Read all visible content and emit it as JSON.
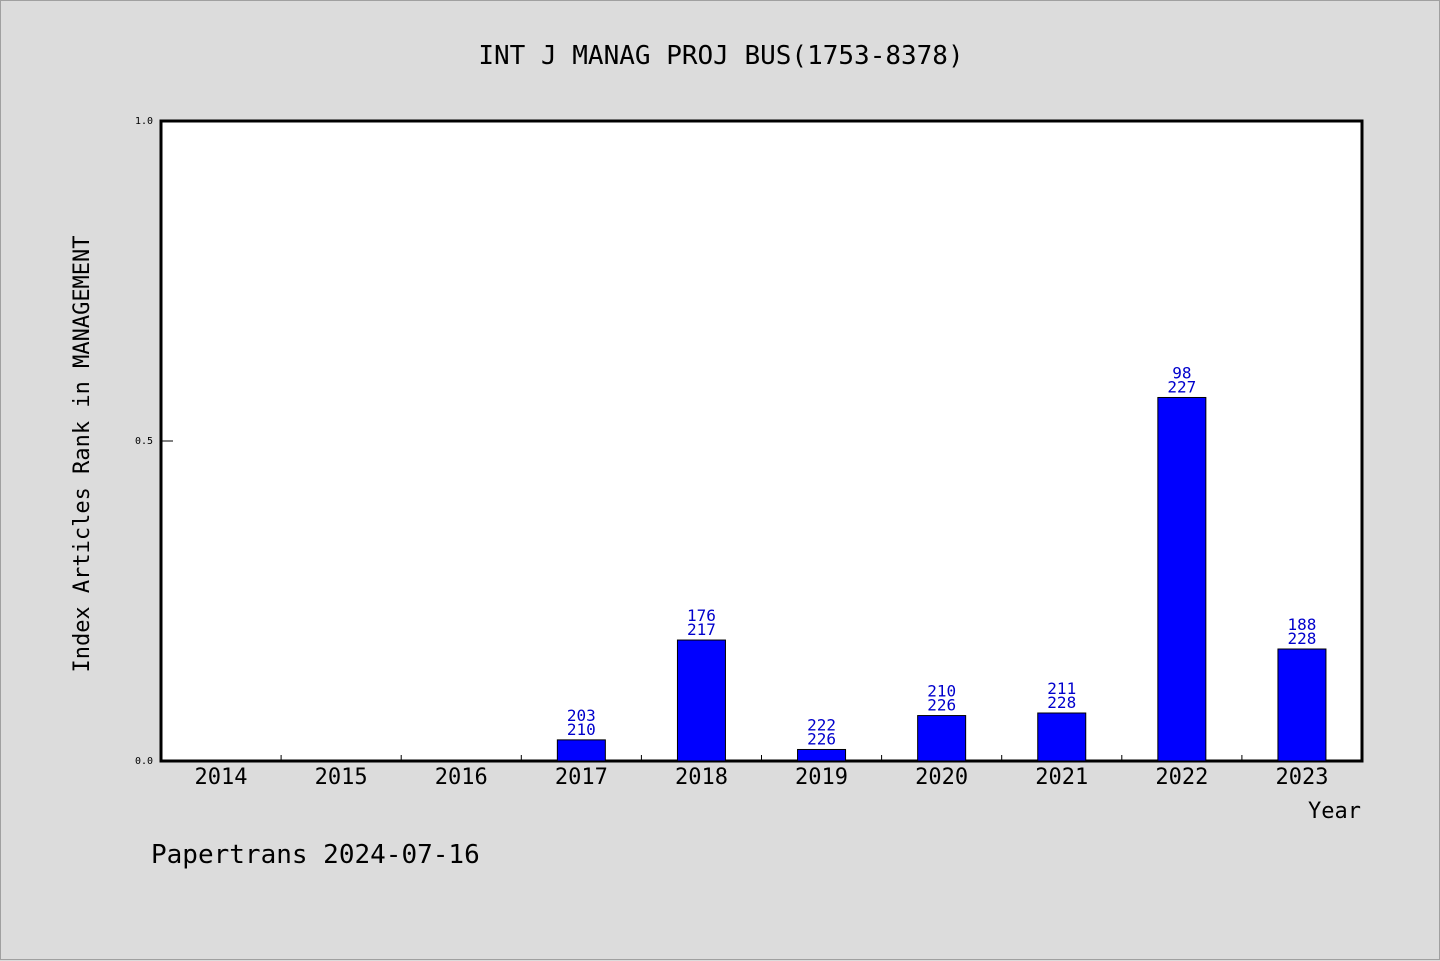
{
  "chart_data": {
    "type": "bar",
    "title": "INT J MANAG PROJ BUS(1753-8378)",
    "xlabel": "Year",
    "ylabel": "Index Articles Rank in MANAGEMENT",
    "ylim": [
      0,
      1
    ],
    "yticks": [
      "0.0",
      "0.5",
      "1.0"
    ],
    "categories": [
      "2014",
      "2015",
      "2016",
      "2017",
      "2018",
      "2019",
      "2020",
      "2021",
      "2022",
      "2023"
    ],
    "values": [
      null,
      null,
      null,
      0.033,
      0.189,
      0.018,
      0.071,
      0.075,
      0.568,
      0.175
    ],
    "rank_labels": [
      null,
      null,
      null,
      "203",
      "176",
      "222",
      "210",
      "211",
      "98",
      "188"
    ],
    "total_labels": [
      null,
      null,
      null,
      "210",
      "217",
      "226",
      "226",
      "228",
      "227",
      "228"
    ],
    "bar_color": "#0000ff",
    "label_color": "#0000cc",
    "grid": false
  },
  "footer": {
    "text": "Papertrans 2024-07-16"
  }
}
